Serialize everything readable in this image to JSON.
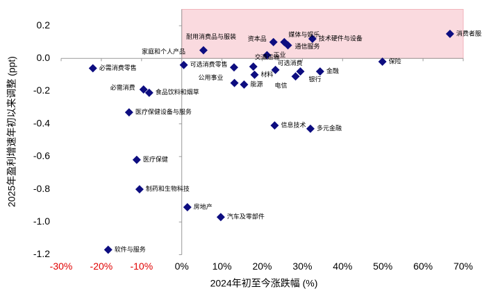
{
  "chart_data": {
    "type": "scatter",
    "x_label": "2024年初至今涨跌幅 (%)",
    "y_label": "2025年盈利增速年初以来调整 (ppt)",
    "labels": [
      "消费者服务",
      "保险",
      "金融",
      "银行",
      "电信",
      "可选消费",
      "工业",
      "通信服务",
      "技术硬件与设备",
      "媒体与娱乐",
      "资本品",
      "耐用消费品与服装",
      "家庭和个人产品",
      "交通运输",
      "公用事业",
      "材料",
      "能源",
      "可选消费零售",
      "必需消费零售",
      "必需消费",
      "食品饮料和烟草",
      "医疗保健设备与服务",
      "医疗保健",
      "制药和生物科技",
      "房地产",
      "汽车及零部件",
      "软件与服务",
      "信息技术",
      "多元金融"
    ],
    "x": [
      66.7,
      49.9,
      34.4,
      29.5,
      28.3,
      23.3,
      21.2,
      26.4,
      32.5,
      25.5,
      22.8,
      5.4,
      13.0,
      17.8,
      13.1,
      18.1,
      15.5,
      0.5,
      -22.1,
      -9.5,
      -8.1,
      -13.1,
      -11.2,
      -10.5,
      1.4,
      9.7,
      -18.3,
      23.1,
      32.0
    ],
    "values": [
      0.15,
      -0.02,
      -0.08,
      -0.08,
      -0.11,
      -0.07,
      0.02,
      0.08,
      0.12,
      0.1,
      0.1,
      0.05,
      -0.055,
      -0.05,
      -0.15,
      -0.1,
      -0.16,
      -0.04,
      -0.06,
      -0.19,
      -0.21,
      -0.33,
      -0.62,
      -0.8,
      -0.91,
      -0.97,
      -1.17,
      -0.41,
      -0.43
    ],
    "color": "#0d0d80",
    "highlight_color": "#fadadf",
    "xlim": [
      -30,
      70
    ],
    "xticks": [
      {
        "value": -30,
        "label": "-30%"
      },
      {
        "value": -20,
        "label": "-20%"
      },
      {
        "value": -10,
        "label": "-10%"
      },
      {
        "value": 0,
        "label": "0%"
      },
      {
        "value": 10,
        "label": "10%"
      },
      {
        "value": 20,
        "label": "20%"
      },
      {
        "value": 30,
        "label": "30%"
      },
      {
        "value": 40,
        "label": "40%"
      },
      {
        "value": 50,
        "label": "50%"
      },
      {
        "value": 60,
        "label": "60%"
      },
      {
        "value": 70,
        "label": "70%"
      }
    ],
    "ylim": [
      -1.2,
      0.3
    ],
    "yticks": [
      0.2,
      {
        "value": 0,
        "label": "0.0"
      },
      -0.2,
      -0.4,
      -0.6,
      -0.8,
      {
        "value": -1,
        "label": "-1.0"
      },
      -1.2
    ]
  }
}
